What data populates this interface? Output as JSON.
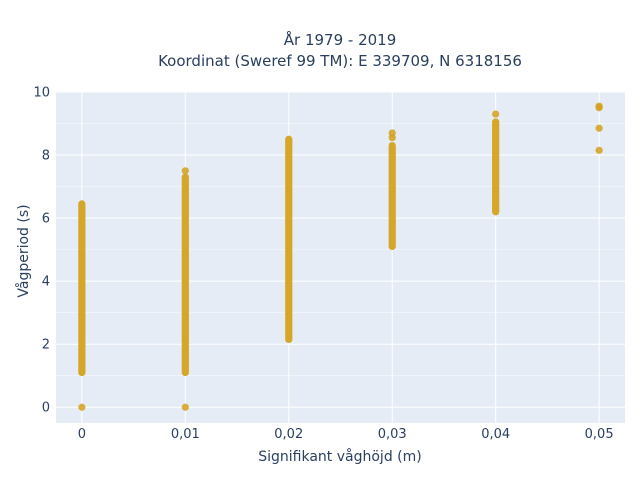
{
  "chart_data": {
    "type": "scatter",
    "title_lines": [
      "År 1979 - 2019",
      "Koordinat (Sweref 99 TM): E 339709, N 6318156"
    ],
    "xlabel": "Signifikant våghöjd (m)",
    "ylabel": "Vågperiod (s)",
    "xticks": [
      0,
      0.01,
      0.02,
      0.03,
      0.04,
      0.05
    ],
    "xtick_labels": [
      "0",
      "0,01",
      "0,02",
      "0,03",
      "0,04",
      "0,05"
    ],
    "yticks": [
      0,
      2,
      4,
      6,
      8,
      10
    ],
    "ytick_labels": [
      "0",
      "2",
      "4",
      "6",
      "8",
      "10"
    ],
    "xlim": [
      -0.0025,
      0.0525
    ],
    "ylim": [
      -0.5,
      10
    ],
    "grid": true,
    "marker_color": "#d4a017",
    "columns": [
      {
        "x": 0,
        "y_range": [
          1.1,
          6.45
        ],
        "points": [
          0
        ]
      },
      {
        "x": 0.01,
        "y_range": [
          1.1,
          7.3
        ],
        "points": [
          0,
          7.5
        ]
      },
      {
        "x": 0.02,
        "y_range": [
          2.15,
          8.5
        ],
        "points": []
      },
      {
        "x": 0.03,
        "y_range": [
          5.1,
          8.3
        ],
        "points": [
          8.55,
          8.7
        ]
      },
      {
        "x": 0.04,
        "y_range": [
          6.2,
          9.05
        ],
        "points": [
          9.3
        ]
      },
      {
        "x": 0.05,
        "y_range": null,
        "points": [
          8.15,
          8.85,
          9.5,
          9.55
        ]
      }
    ]
  },
  "colors": {
    "plot_bg": "#e5ecf6",
    "grid": "#ffffff",
    "text": "#2a3f5f"
  }
}
